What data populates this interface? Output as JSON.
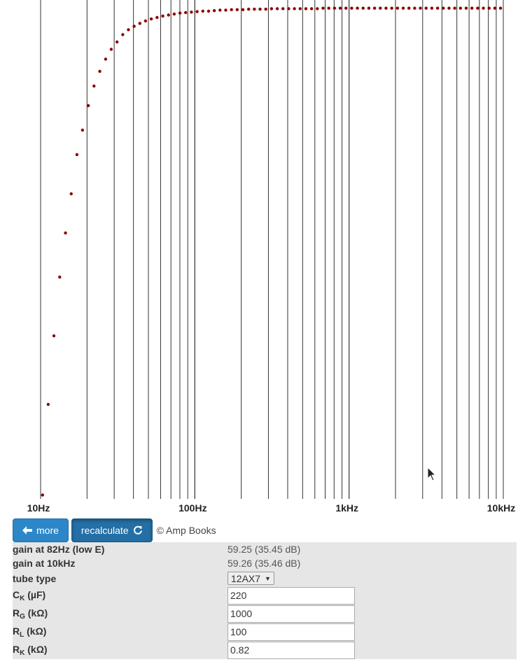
{
  "chart_data": {
    "type": "scatter",
    "title": "",
    "xlabel": "",
    "ylabel": "",
    "x_scale": "log",
    "xlim": [
      10,
      10000
    ],
    "x_tick_labels": [
      "10Hz",
      "100Hz",
      "1kHz",
      "10kHz"
    ],
    "grid": true,
    "point_color": "#8b0000",
    "series": [
      {
        "x": [
          10.3,
          11.2,
          12.2,
          13.3,
          14.5,
          15.8,
          17.2,
          18.7,
          20.4,
          22.2,
          24.2,
          26.4,
          28.7,
          31.3,
          34.1,
          37.1,
          40.4,
          44.0,
          47.9,
          52.2,
          56.9,
          62.0,
          67.5,
          73.5,
          80.1,
          87.2,
          95.0,
          103.5,
          112.7,
          122.8,
          133.7,
          145.6,
          158.6,
          172.8,
          188.2,
          205.0,
          223.3,
          243.2,
          264.9,
          288.5,
          314.2,
          342.3,
          372.8,
          406.1,
          442.3,
          481.8,
          524.8,
          571.6,
          622.6,
          678.2,
          738.7,
          804.6,
          876.4,
          954.6,
          1039.8,
          1132.6,
          1233.6,
          1343.7,
          1463.6,
          1594.2,
          1736.4,
          1891.4,
          2060.2,
          2244.0,
          2444.3,
          2662.4,
          2900.0,
          3158.8,
          3440.6,
          3747.7,
          4082.1,
          4446.4,
          4843.2,
          5275.4,
          5746.2,
          6258.9,
          6817.5,
          7425.8,
          8088.5,
          8810.3,
          9596.5
        ],
        "y": [
          0.005,
          0.19,
          0.33,
          0.45,
          0.54,
          0.62,
          0.7,
          0.75,
          0.8,
          0.84,
          0.87,
          0.895,
          0.915,
          0.93,
          0.945,
          0.955,
          0.962,
          0.968,
          0.973,
          0.977,
          0.98,
          0.983,
          0.985,
          0.987,
          0.989,
          0.99,
          0.991,
          0.992,
          0.993,
          0.993,
          0.994,
          0.995,
          0.995,
          0.996,
          0.996,
          0.996,
          0.997,
          0.997,
          0.997,
          0.997,
          0.998,
          0.998,
          0.998,
          0.998,
          0.998,
          0.998,
          0.998,
          0.998,
          0.998,
          0.999,
          0.999,
          0.999,
          0.999,
          0.999,
          0.999,
          0.999,
          0.999,
          0.999,
          0.999,
          0.999,
          0.999,
          0.999,
          0.999,
          0.999,
          0.999,
          0.999,
          0.999,
          0.999,
          0.999,
          0.999,
          0.999,
          0.999,
          0.999,
          0.999,
          0.999,
          0.999,
          0.999,
          0.999,
          0.999,
          0.999,
          0.999
        ]
      }
    ]
  },
  "toolbar": {
    "more_label": "more",
    "recalculate_label": "recalculate",
    "copyright": "© Amp Books",
    "more_icon": "arrow-left-icon",
    "recalculate_icon": "refresh-icon",
    "accent": "#2c87c9"
  },
  "params": {
    "gain_82": {
      "label": "gain at 82Hz (low E)",
      "value": "59.25 (35.45 dB)"
    },
    "gain_10k": {
      "label": "gain at 10kHz",
      "value": "59.26 (35.46 dB)"
    },
    "tube_type": {
      "label": "tube type",
      "value": "12AX7"
    },
    "ck": {
      "label_main": "C",
      "label_sub": "K",
      "label_unit": " (µF)",
      "value": "220"
    },
    "rg": {
      "label_main": "R",
      "label_sub": "G",
      "label_unit": " (kΩ)",
      "value": "1000"
    },
    "rl": {
      "label_main": "R",
      "label_sub": "L",
      "label_unit": " (kΩ)",
      "value": "100"
    },
    "rk": {
      "label_main": "R",
      "label_sub": "K",
      "label_unit": " (kΩ)",
      "value": "0.82"
    }
  }
}
